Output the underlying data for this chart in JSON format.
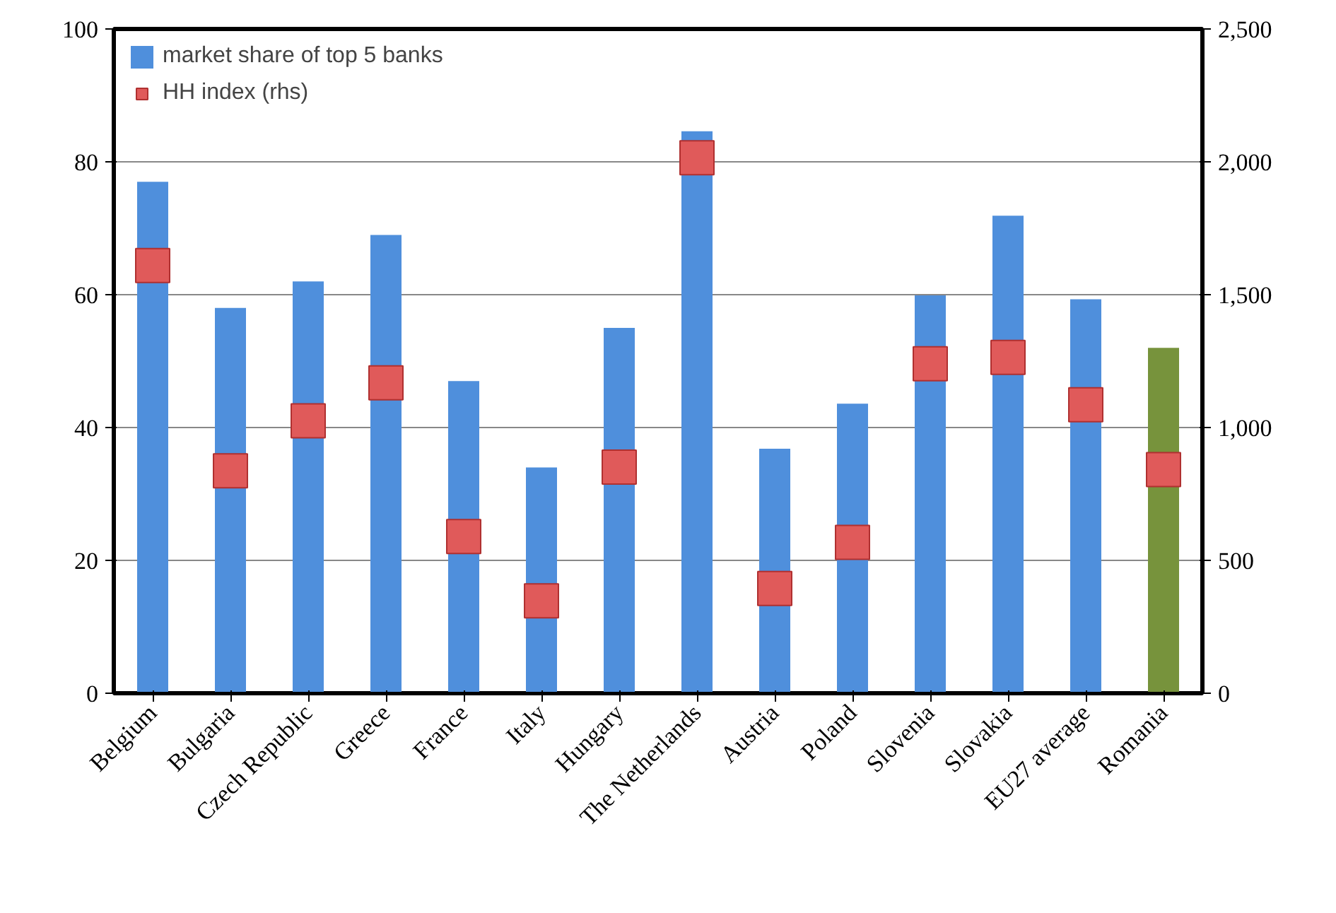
{
  "chart_data": {
    "type": "bar",
    "categories": [
      "Belgium",
      "Bulgaria",
      "Czech Republic",
      "Greece",
      "France",
      "Italy",
      "Hungary",
      "The Netherlands",
      "Austria",
      "Poland",
      "Slovenia",
      "Slovakia",
      "EU27 average",
      "Romania"
    ],
    "series": [
      {
        "name": "market share of top 5 banks",
        "color": "#4f8fdc",
        "colors": [
          "#4f8fdc",
          "#4f8fdc",
          "#4f8fdc",
          "#4f8fdc",
          "#4f8fdc",
          "#4f8fdc",
          "#4f8fdc",
          "#4f8fdc",
          "#4f8fdc",
          "#4f8fdc",
          "#4f8fdc",
          "#4f8fdc",
          "#4f8fdc",
          "#77933c"
        ],
        "values": [
          77,
          58,
          62,
          69,
          47,
          34,
          55,
          84.6,
          36.8,
          43.6,
          59.9,
          71.9,
          59.3,
          52
        ]
      },
      {
        "name": "HH index (rhs)",
        "type": "scatter",
        "axis": "y2",
        "color": "#e05a5a",
        "values": [
          1610,
          837,
          1025,
          1168,
          590,
          348,
          851,
          2015,
          394,
          568,
          1240,
          1264,
          1086,
          842
        ]
      }
    ],
    "ylim": [
      0,
      100
    ],
    "yticks": [
      0,
      20,
      40,
      60,
      80,
      100
    ],
    "y2lim": [
      0,
      2500
    ],
    "y2ticks": [
      0,
      {
        "value": 500,
        "label": "500"
      },
      {
        "value": 1000,
        "label": "1,000"
      },
      {
        "value": 1500,
        "label": "1,500"
      },
      {
        "value": 2000,
        "label": "2,000"
      },
      {
        "value": 2500,
        "label": "2,500"
      }
    ],
    "grid": "y",
    "legend": "top left",
    "marker": "square"
  }
}
